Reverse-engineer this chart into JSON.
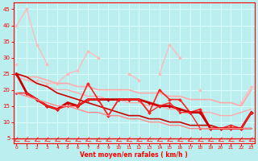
{
  "x": [
    0,
    1,
    2,
    3,
    4,
    5,
    6,
    7,
    8,
    9,
    10,
    11,
    12,
    13,
    14,
    15,
    16,
    17,
    18,
    19,
    20,
    21,
    22,
    23
  ],
  "series": [
    {
      "y": [
        40,
        45,
        34,
        28,
        null,
        null,
        null,
        null,
        null,
        null,
        null,
        null,
        null,
        null,
        null,
        null,
        null,
        null,
        null,
        null,
        null,
        null,
        null,
        null
      ],
      "color": "#ffbbbb",
      "lw": 1.0,
      "marker": "D",
      "ms": 2
    },
    {
      "y": [
        28,
        null,
        23,
        22,
        22,
        25,
        26,
        32,
        30,
        null,
        null,
        25,
        23,
        null,
        25,
        34,
        30,
        null,
        20,
        null,
        null,
        null,
        16,
        21
      ],
      "color": "#ffbbbb",
      "lw": 1.0,
      "marker": "D",
      "ms": 2
    },
    {
      "y": [
        25,
        24,
        24,
        23,
        22,
        22,
        21,
        21,
        20,
        20,
        20,
        20,
        19,
        19,
        19,
        18,
        18,
        17,
        17,
        17,
        16,
        16,
        15,
        20
      ],
      "color": "#ffaaaa",
      "lw": 1.2,
      "marker": null,
      "ms": 0
    },
    {
      "y": [
        24,
        23,
        22,
        21,
        20,
        20,
        19,
        18,
        18,
        17,
        17,
        16,
        16,
        15,
        15,
        14,
        14,
        13,
        13,
        13,
        12,
        12,
        13,
        14
      ],
      "color": "#ffaaaa",
      "lw": 1.0,
      "marker": null,
      "ms": 0
    },
    {
      "y": [
        25,
        19,
        17,
        15,
        14,
        16,
        15,
        22,
        17,
        12,
        17,
        17,
        17,
        13,
        20,
        17,
        17,
        13,
        14,
        8,
        8,
        9,
        8,
        13
      ],
      "color": "#ff2222",
      "lw": 1.2,
      "marker": "D",
      "ms": 2
    },
    {
      "y": [
        25,
        19,
        17,
        15,
        14,
        16,
        15,
        17,
        17,
        17,
        17,
        17,
        17,
        16,
        15,
        15,
        14,
        13,
        13,
        8,
        8,
        8,
        8,
        13
      ],
      "color": "#cc0000",
      "lw": 2.0,
      "marker": "D",
      "ms": 2
    },
    {
      "y": [
        25,
        24,
        22,
        21,
        19,
        18,
        17,
        16,
        15,
        14,
        13,
        12,
        12,
        11,
        11,
        10,
        10,
        9,
        9,
        9,
        8,
        8,
        8,
        8
      ],
      "color": "#cc0000",
      "lw": 1.2,
      "marker": null,
      "ms": 0
    },
    {
      "y": [
        19,
        19,
        17,
        15,
        14,
        15,
        15,
        17,
        17,
        12,
        17,
        17,
        17,
        13,
        15,
        16,
        13,
        13,
        8,
        8,
        8,
        8,
        8,
        13
      ],
      "color": "#ff2222",
      "lw": 1.0,
      "marker": "D",
      "ms": 1.5
    },
    {
      "y": [
        19,
        18,
        17,
        16,
        15,
        15,
        14,
        13,
        13,
        12,
        12,
        11,
        11,
        10,
        10,
        9,
        9,
        8,
        8,
        8,
        8,
        8,
        8,
        8
      ],
      "color": "#ff8888",
      "lw": 1.0,
      "marker": null,
      "ms": 0
    }
  ],
  "wind_arrows": {
    "y_data": 4.2,
    "color": "#ff4444",
    "lw": 0.8
  },
  "hline_y": 5.0,
  "xlabel": "Vent moyen/en rafales ( km/h )",
  "ylabel_ticks": [
    5,
    10,
    15,
    20,
    25,
    30,
    35,
    40,
    45
  ],
  "xlim": [
    -0.3,
    23.3
  ],
  "ylim": [
    3.5,
    47
  ],
  "bg_color": "#bbeeee",
  "grid_color": "#ddffff",
  "axis_color": "#ff0000",
  "tick_color": "#ff0000",
  "label_color": "#ff0000"
}
